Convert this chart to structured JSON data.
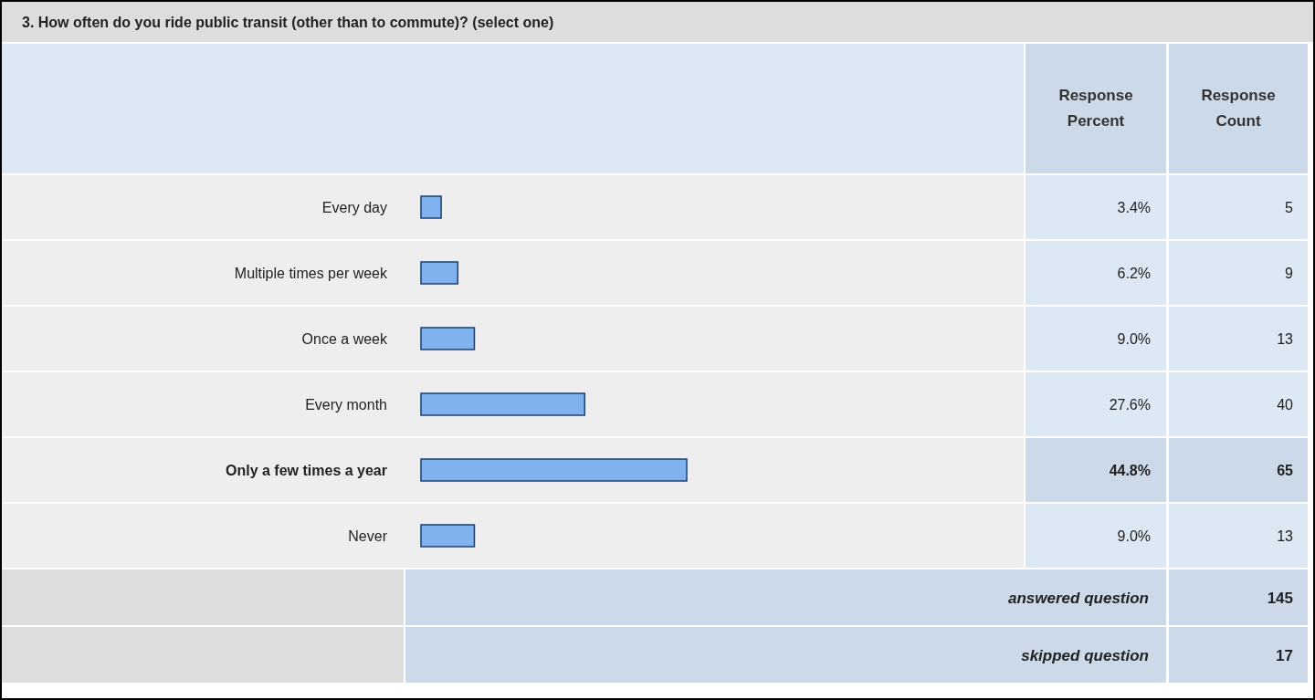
{
  "chart_data": {
    "type": "bar",
    "orientation": "horizontal",
    "title": "3. How often do you ride public transit (other than to commute)? (select one)",
    "categories": [
      "Every day",
      "Multiple times per week",
      "Once a week",
      "Every month",
      "Only a few times a year",
      "Never"
    ],
    "series": [
      {
        "name": "Response Percent",
        "color": "#7fb2ee",
        "values": [
          3.4,
          6.2,
          9.0,
          27.6,
          44.8,
          9.0
        ],
        "value_labels": [
          "3.4%",
          "6.2%",
          "9.0%",
          "27.6%",
          "44.8%",
          "9.0%"
        ]
      }
    ],
    "tick_labels": "y",
    "annotations": [
      "Response Count",
      "5",
      "9",
      "13",
      "40",
      "65",
      "13",
      "answered question",
      "145",
      "skipped question",
      "17"
    ]
  }
}
